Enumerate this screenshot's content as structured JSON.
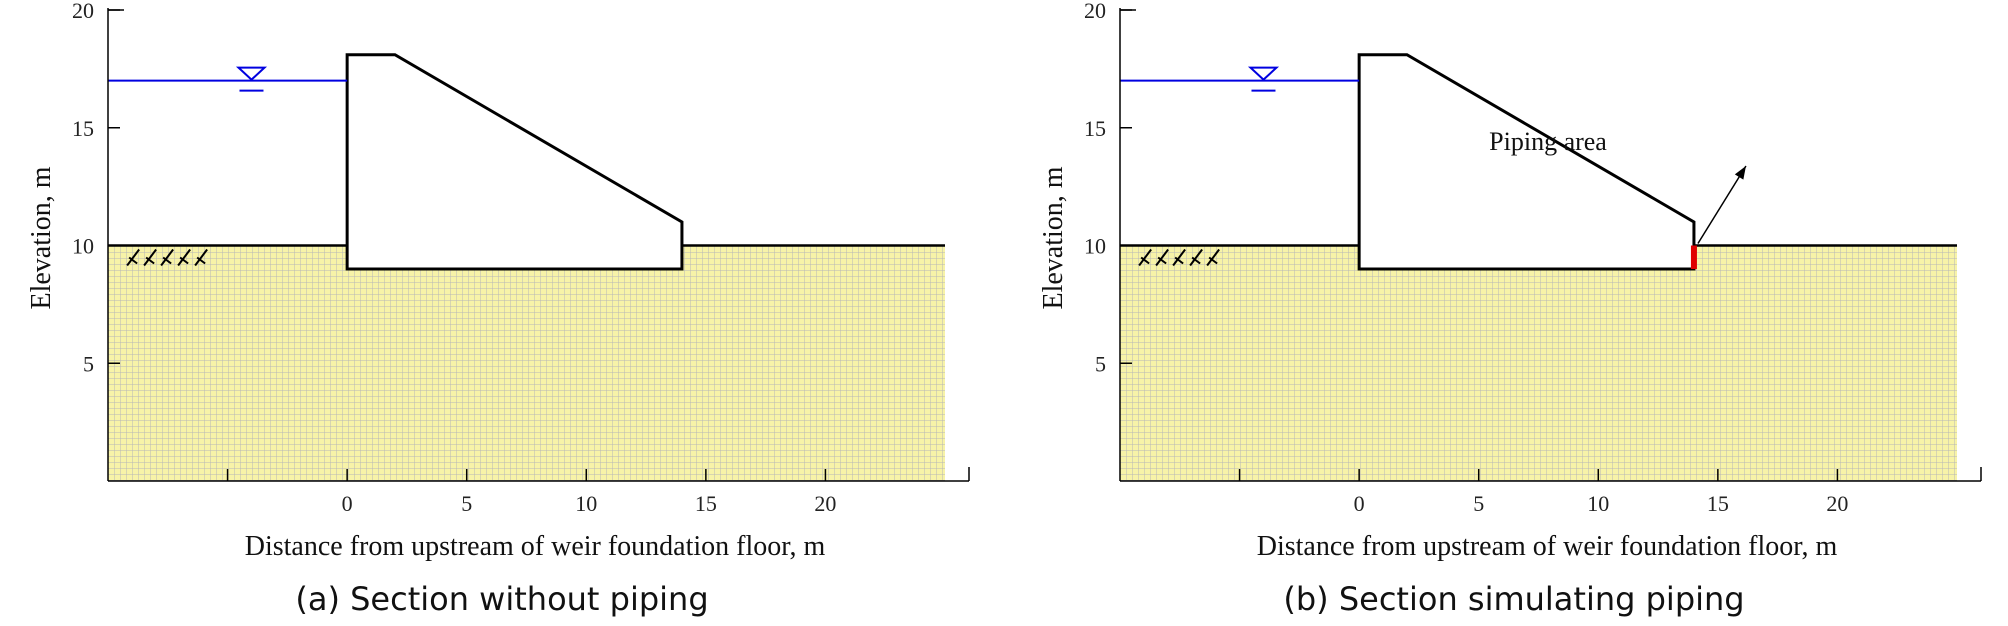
{
  "panels": [
    {
      "id": "a",
      "caption": "(a) Section without piping",
      "piping": false
    },
    {
      "id": "b",
      "caption": "(b) Section simulating piping",
      "piping": true,
      "annotation": "Piping area"
    }
  ],
  "chart_data": {
    "type": "diagram",
    "xlabel": "Distance from upstream of weir foundation floor, m",
    "ylabel": "Elevation, m",
    "x_ticks": [
      0,
      5,
      10,
      15,
      20
    ],
    "y_ticks": [
      5,
      10,
      15,
      20
    ],
    "xlim": [
      -10,
      25
    ],
    "ylim": [
      0,
      20
    ],
    "water_level": 17,
    "ground_level": 10,
    "weir_outline": [
      [
        0,
        9
      ],
      [
        0,
        18.1
      ],
      [
        2,
        18.1
      ],
      [
        14,
        11
      ],
      [
        14,
        9
      ]
    ],
    "piping_zone": {
      "x": 14,
      "y_from": 9,
      "y_to": 10
    }
  },
  "colors": {
    "soil": "#f7f3a8",
    "grid": "#b7b7b7",
    "water": "#0000e0",
    "weir": "#000000",
    "piping": "#e00000"
  }
}
